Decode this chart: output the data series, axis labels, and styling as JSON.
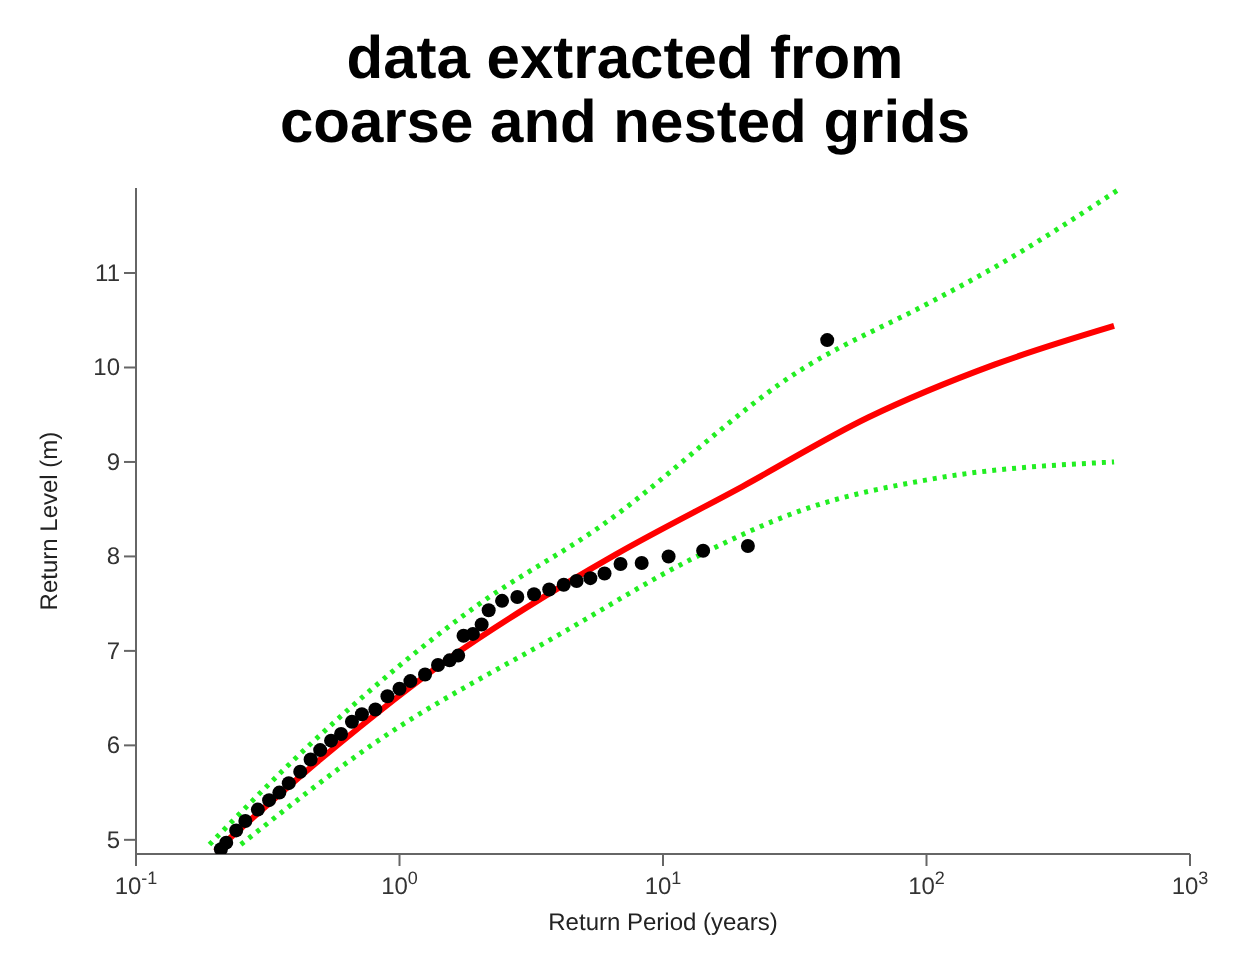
{
  "chart_data": {
    "type": "scatter",
    "title": "data extracted from\ncoarse and nested grids",
    "xlabel": "Return Period (years)",
    "ylabel": "Return Level (m)",
    "log": "x",
    "grid": false,
    "xlim": [
      0.1,
      1000
    ],
    "xticks": [
      {
        "value": 0.1,
        "label": "10$^{-1}$"
      },
      {
        "value": 1,
        "label": "10$^{0}$"
      },
      {
        "value": 10,
        "label": "10$^{1}$"
      },
      {
        "value": 100,
        "label": "10$^{2}$"
      },
      {
        "value": 1000,
        "label": "10$^{3}$"
      }
    ],
    "ylim": [
      4.85,
      11.9
    ],
    "yticks": [
      5,
      6,
      7,
      8,
      9,
      10,
      11
    ],
    "series": [
      {
        "type": "scatter",
        "color": "#000000",
        "marker": "circle",
        "x": [
          0.21,
          0.22,
          0.24,
          0.26,
          0.29,
          0.32,
          0.35,
          0.38,
          0.42,
          0.46,
          0.5,
          0.55,
          0.6,
          0.66,
          0.72,
          0.81,
          0.9,
          1.0,
          1.1,
          1.25,
          1.4,
          1.55,
          1.67,
          1.75,
          1.9,
          2.05,
          2.18,
          2.45,
          2.8,
          3.24,
          3.7,
          4.2,
          4.7,
          5.3,
          6.0,
          6.9,
          8.3,
          10.5,
          14.2,
          21,
          42
        ],
        "values": [
          4.9,
          4.97,
          5.1,
          5.2,
          5.32,
          5.42,
          5.5,
          5.6,
          5.72,
          5.85,
          5.95,
          6.05,
          6.12,
          6.25,
          6.33,
          6.38,
          6.52,
          6.6,
          6.68,
          6.75,
          6.85,
          6.9,
          6.95,
          7.16,
          7.18,
          7.28,
          7.43,
          7.53,
          7.57,
          7.6,
          7.65,
          7.7,
          7.74,
          7.77,
          7.82,
          7.92,
          7.93,
          8.0,
          8.06,
          8.11,
          10.29
        ]
      },
      {
        "type": "line",
        "color": "#ff0000",
        "line_style": "solid",
        "marker": "none",
        "x": [
          0.2,
          0.5,
          1.6,
          3,
          6.6,
          20,
          60,
          181,
          515
        ],
        "values": [
          4.88,
          5.85,
          6.95,
          7.45,
          8.02,
          8.74,
          9.47,
          10.03,
          10.44
        ]
      },
      {
        "type": "line",
        "color": "#22ee22",
        "line_style": "dotted",
        "marker": "none",
        "x": [
          0.19,
          0.466,
          1.97,
          5.6,
          34.5,
          105,
          181,
          540
        ],
        "values": [
          4.95,
          6.03,
          7.48,
          8.29,
          10.0,
          10.7,
          11.06,
          11.89
        ]
      },
      {
        "type": "line",
        "color": "#22ee22",
        "line_style": "dotted",
        "marker": "none",
        "x": [
          0.25,
          0.81,
          4.2,
          12.8,
          34.5,
          105,
          515
        ],
        "values": [
          4.95,
          6.03,
          7.2,
          7.97,
          8.5,
          8.82,
          9.0
        ]
      }
    ]
  }
}
